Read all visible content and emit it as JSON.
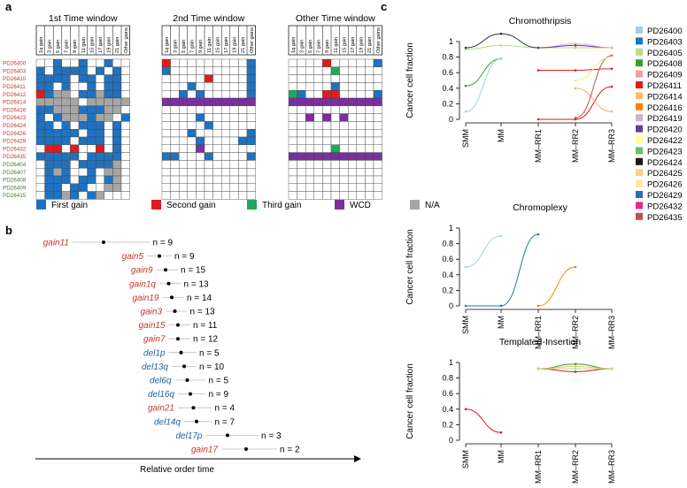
{
  "panel_labels": {
    "a": "a",
    "b": "b",
    "c": "c"
  },
  "colors": {
    "first": "#1f72c0",
    "second": "#e31a1c",
    "third": "#1faa5c",
    "wcd": "#7b2f9e",
    "na": "#a6a6a6",
    "sample_red": "#c0392b",
    "sample_green": "#4a7a28",
    "gain_red": "#c0392b",
    "del_blue": "#1f5f9a"
  },
  "heatmap": {
    "windows": [
      "1st Time window",
      "2nd Time window",
      "Other Time window"
    ],
    "columns": [
      "1q gain",
      "3 gain",
      "5 gain",
      "7 gain",
      "9 gain",
      "11 gain",
      "15 gain",
      "17 gain",
      "19 gain",
      "21 gain",
      "Other gains"
    ],
    "samples": [
      {
        "name": "PD26400",
        "group": "red"
      },
      {
        "name": "PD26403",
        "group": "red"
      },
      {
        "name": "PD26410",
        "group": "red"
      },
      {
        "name": "PD26411",
        "group": "red"
      },
      {
        "name": "PD26412",
        "group": "red"
      },
      {
        "name": "PD26414",
        "group": "red"
      },
      {
        "name": "PD26416",
        "group": "red"
      },
      {
        "name": "PD26423",
        "group": "red"
      },
      {
        "name": "PD26424",
        "group": "red"
      },
      {
        "name": "PD26426",
        "group": "red"
      },
      {
        "name": "PD26429",
        "group": "red"
      },
      {
        "name": "PD26432",
        "group": "red"
      },
      {
        "name": "PD26435",
        "group": "red"
      },
      {
        "name": "PD26404",
        "group": "green"
      },
      {
        "name": "PD26407",
        "group": "green"
      },
      {
        "name": "PD26408",
        "group": "green"
      },
      {
        "name": "PD26409",
        "group": "green"
      },
      {
        "name": "PD26415",
        "group": "green"
      }
    ],
    "grids": [
      [
        "..1..1..1..",
        "1.1111.1.1.",
        "1111.11.11.",
        "11.1..1.11.",
        "21NN.11N11.",
        "NNNNN.NNNNN",
        "11NNN111NN.",
        "1.1NNN1NN.1",
        "11.1.111.1.",
        "11111.11.1.",
        "1111.111.1.",
        ".22.2..2.1.",
        "11111.1111.",
        ".111.1111N.",
        ".1N1..1.NN.",
        ".111.11.1N.",
        ".11.11..NN.",
        ".11N1.1N..."
      ],
      [
        "2.........1",
        "1.........1",
        ".....2....1",
        "...1......1",
        "..1.1.....1",
        "WWWWWWWWWWW",
        "...........",
        "....1......",
        ".....1.....",
        "...1......1",
        "....1....11",
        "....W......",
        "11...1....1",
        "...........",
        "...........",
        "...........",
        "...........",
        "..........."
      ],
      [
        "....2.....1",
        ".....3.....",
        "...........",
        ".....1.....",
        "31..22....1",
        "WWWWWWWWWWW",
        "...........",
        "..W.W.W....",
        "...........",
        "...........",
        "...........",
        ".....3.....",
        "WWWWWWWWWWW",
        "...........",
        "...........",
        "...........",
        "...........",
        "..........."
      ]
    ],
    "legend": [
      {
        "key": "first",
        "label": "First gain"
      },
      {
        "key": "second",
        "label": "Second gain"
      },
      {
        "key": "third",
        "label": "Third gain"
      },
      {
        "key": "wcd",
        "label": "WCD"
      },
      {
        "key": "na",
        "label": "N/A"
      }
    ]
  },
  "order": {
    "items": [
      {
        "label": "gain11",
        "n": "n = 9",
        "type": "gain",
        "v": 0.22,
        "lo": 0.12,
        "hi": 0.37
      },
      {
        "label": "gain5",
        "n": "n = 9",
        "type": "gain",
        "v": 0.4,
        "lo": 0.36,
        "hi": 0.44
      },
      {
        "label": "gain9",
        "n": "n = 15",
        "type": "gain",
        "v": 0.42,
        "lo": 0.39,
        "hi": 0.46
      },
      {
        "label": "gain1q",
        "n": "n = 13",
        "type": "gain",
        "v": 0.43,
        "lo": 0.4,
        "hi": 0.47
      },
      {
        "label": "gain19",
        "n": "n = 14",
        "type": "gain",
        "v": 0.44,
        "lo": 0.41,
        "hi": 0.48
      },
      {
        "label": "gain3",
        "n": "n = 13",
        "type": "gain",
        "v": 0.45,
        "lo": 0.42,
        "hi": 0.49
      },
      {
        "label": "gain15",
        "n": "n = 11",
        "type": "gain",
        "v": 0.46,
        "lo": 0.43,
        "hi": 0.5
      },
      {
        "label": "gain7",
        "n": "n = 12",
        "type": "gain",
        "v": 0.46,
        "lo": 0.43,
        "hi": 0.5
      },
      {
        "label": "del1p",
        "n": "n = 5",
        "type": "del",
        "v": 0.47,
        "lo": 0.43,
        "hi": 0.52
      },
      {
        "label": "del13q",
        "n": "n = 10",
        "type": "del",
        "v": 0.48,
        "lo": 0.44,
        "hi": 0.52
      },
      {
        "label": "del6q",
        "n": "n = 5",
        "type": "del",
        "v": 0.49,
        "lo": 0.45,
        "hi": 0.55
      },
      {
        "label": "del16q",
        "n": "n = 9",
        "type": "del",
        "v": 0.5,
        "lo": 0.46,
        "hi": 0.55
      },
      {
        "label": "gain21",
        "n": "n = 4",
        "type": "gain",
        "v": 0.51,
        "lo": 0.46,
        "hi": 0.57
      },
      {
        "label": "del14q",
        "n": "n = 7",
        "type": "del",
        "v": 0.52,
        "lo": 0.48,
        "hi": 0.57
      },
      {
        "label": "del17p",
        "n": "n = 3",
        "type": "del",
        "v": 0.62,
        "lo": 0.55,
        "hi": 0.72
      },
      {
        "label": "gain17",
        "n": "n = 2",
        "type": "gain",
        "v": 0.68,
        "lo": 0.6,
        "hi": 0.78
      }
    ],
    "xlabel": "Relative order time"
  },
  "chart_data": [
    {
      "type": "line",
      "title": "Chromothripsis",
      "ylabel": "Cancer cell fraction",
      "ylim": [
        0,
        1
      ],
      "categories": [
        "SMM",
        "MM",
        "MM–RR1",
        "MM–RR2",
        "MM–RR3"
      ],
      "yticks": [
        "0",
        "0.2",
        "0.4",
        "0.6",
        "0.8",
        "1"
      ],
      "series": [
        {
          "name": "PD26405",
          "color": "#b2df8a",
          "points": [
            [
              0,
              0.9
            ],
            [
              1,
              0.95
            ],
            [
              2,
              0.92
            ],
            [
              3,
              0.92
            ],
            [
              4,
              0.92
            ]
          ]
        },
        {
          "name": "PD26424",
          "color": "#333333",
          "points": [
            [
              0,
              0.92
            ],
            [
              1,
              1.1
            ],
            [
              2,
              0.92
            ]
          ]
        },
        {
          "name": "PD26423",
          "color": "#33a02c",
          "points": [
            [
              0,
              0.43
            ],
            [
              1,
              0.78
            ]
          ]
        },
        {
          "name": "PD26400",
          "color": "#a6cee3",
          "points": [
            [
              0,
              0.1
            ],
            [
              1,
              0.78
            ]
          ]
        },
        {
          "name": "PD26419",
          "color": "#cab2d6",
          "points": [
            [
              2,
              0.92
            ],
            [
              3,
              0.97
            ],
            [
              4,
              0.92
            ]
          ]
        },
        {
          "name": "PD26420",
          "color": "#6a3d9a",
          "points": [
            [
              2,
              0.92
            ],
            [
              3,
              0.95
            ],
            [
              4,
              0.92
            ]
          ]
        },
        {
          "name": "PD26416",
          "color": "#ff7f00",
          "points": [
            [
              3,
              0.92
            ],
            [
              4,
              0.92
            ]
          ]
        },
        {
          "name": "PD26425",
          "color": "#fdbf6f",
          "points": [
            [
              3,
              0.92
            ],
            [
              4,
              0.92
            ]
          ]
        },
        {
          "name": "PD26411",
          "color": "#e31a1c",
          "points": [
            [
              2,
              0.63
            ],
            [
              3,
              0.63
            ],
            [
              4,
              0.65
            ]
          ]
        },
        {
          "name": "PD26432",
          "color": "#d7191c",
          "points": [
            [
              2,
              0
            ],
            [
              3,
              0
            ],
            [
              4,
              0.42
            ]
          ]
        },
        {
          "name": "PD26414",
          "color": "#fdae61",
          "points": [
            [
              3,
              0.4
            ],
            [
              4,
              0.1
            ]
          ]
        },
        {
          "name": "PD26435",
          "color": "#c0504d",
          "points": [
            [
              3,
              0.02
            ],
            [
              4,
              0.82
            ]
          ]
        },
        {
          "name": "PD26426",
          "color": "#ffe680",
          "points": [
            [
              3,
              0.5
            ],
            [
              4,
              0.8
            ]
          ]
        }
      ]
    },
    {
      "type": "line",
      "title": "Chromoplexy",
      "ylabel": "Cancer cell fraction",
      "ylim": [
        0,
        1
      ],
      "categories": [
        "SMM",
        "MM",
        "MM–RR1",
        "MM–RR2",
        "MM–RR3"
      ],
      "yticks": [
        "0",
        "0.2",
        "0.4",
        "0.6",
        "0.8",
        "1"
      ],
      "series": [
        {
          "name": "PD26400",
          "color": "#a6cee3",
          "points": [
            [
              0,
              0.5
            ],
            [
              1,
              0.9
            ]
          ]
        },
        {
          "name": "PD26429",
          "color": "#1f78b4",
          "points": [
            [
              0,
              0
            ],
            [
              1,
              0
            ],
            [
              2,
              0.92
            ]
          ]
        },
        {
          "name": "PD26416",
          "color": "#ff7f00",
          "points": [
            [
              2,
              0
            ],
            [
              3,
              0.5
            ]
          ]
        }
      ]
    },
    {
      "type": "line",
      "title": "Templated-Insertion",
      "ylabel": "Cancer cell fraction",
      "ylim": [
        0,
        1
      ],
      "categories": [
        "SMM",
        "MM",
        "MM–RR1",
        "MM–RR2",
        "MM–RR3"
      ],
      "yticks": [
        "0",
        "0.2",
        "0.4",
        "0.6",
        "0.8",
        "1"
      ],
      "series": [
        {
          "name": "PD26411",
          "color": "#e31a1c",
          "points": [
            [
              0,
              0.4
            ],
            [
              1,
              0.1
            ]
          ]
        },
        {
          "name": "PD26423",
          "color": "#33a02c",
          "points": [
            [
              2,
              0.92
            ],
            [
              3,
              0.98
            ],
            [
              4,
              0.92
            ]
          ]
        },
        {
          "name": "PD26425",
          "color": "#fdbf6f",
          "points": [
            [
              2,
              0.92
            ],
            [
              3,
              0.95
            ],
            [
              4,
              0.92
            ]
          ]
        },
        {
          "name": "PD26432",
          "color": "#d7191c",
          "points": [
            [
              2,
              0.92
            ],
            [
              3,
              0.88
            ],
            [
              4,
              0.92
            ]
          ]
        },
        {
          "name": "PD26405",
          "color": "#b2df8a",
          "points": [
            [
              2,
              0.92
            ],
            [
              3,
              0.92
            ],
            [
              4,
              0.92
            ]
          ]
        }
      ]
    }
  ],
  "sample_legend": [
    {
      "name": "PD26400",
      "color": "#a6cee3"
    },
    {
      "name": "PD26403",
      "color": "#1f78b4"
    },
    {
      "name": "PD26405",
      "color": "#b2df8a"
    },
    {
      "name": "PD26408",
      "color": "#33a02c"
    },
    {
      "name": "PD26409",
      "color": "#fb9a99"
    },
    {
      "name": "PD26411",
      "color": "#e31a1c"
    },
    {
      "name": "PD26414",
      "color": "#fdbf6f"
    },
    {
      "name": "PD26416",
      "color": "#ff7f00"
    },
    {
      "name": "PD26419",
      "color": "#cab2d6"
    },
    {
      "name": "PD26420",
      "color": "#6a3d9a"
    },
    {
      "name": "PD26422",
      "color": "#ffff99"
    },
    {
      "name": "PD26423",
      "color": "#66c26a"
    },
    {
      "name": "PD26424",
      "color": "#1a1a1a"
    },
    {
      "name": "PD26425",
      "color": "#ffd080"
    },
    {
      "name": "PD26426",
      "color": "#ffe9a0"
    },
    {
      "name": "PD26429",
      "color": "#2b6fb0"
    },
    {
      "name": "PD26432",
      "color": "#e7298a"
    },
    {
      "name": "PD26435",
      "color": "#c0504d"
    }
  ]
}
